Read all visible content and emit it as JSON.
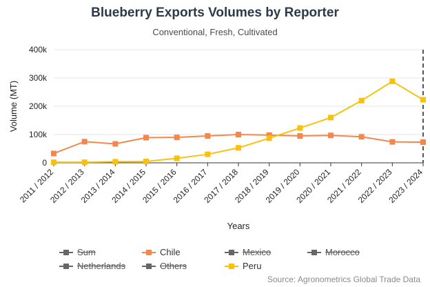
{
  "chart_data": {
    "type": "line",
    "title": "Blueberry Exports Volumes by Reporter",
    "subtitle": "Conventional, Fresh, Cultivated",
    "xlabel": "Years",
    "ylabel": "Volume (MT)",
    "ylim": [
      0,
      400000
    ],
    "y_ticks": [
      "0",
      "100k",
      "200k",
      "300k",
      "400k"
    ],
    "categories": [
      "2011 / 2012",
      "2012 / 2013",
      "2013 / 2014",
      "2014 / 2015",
      "2015 / 2016",
      "2016 / 2017",
      "2017 / 2018",
      "2018 / 2019",
      "2019 / 2020",
      "2020 / 2021",
      "2021 / 2022",
      "2022 / 2023",
      "2023 / 2024"
    ],
    "series": [
      {
        "name": "Chile",
        "color": "#f4874b",
        "values": [
          33000,
          75000,
          67000,
          89000,
          90000,
          95000,
          100000,
          98000,
          95000,
          97000,
          92000,
          74000,
          73000
        ]
      },
      {
        "name": "Peru",
        "color": "#f9c10e",
        "values": [
          2000,
          2000,
          4000,
          5000,
          16000,
          30000,
          53000,
          87000,
          123000,
          160000,
          220000,
          288000,
          223000
        ]
      }
    ],
    "legend": [
      {
        "name": "Sum",
        "visible": false,
        "color": "#666666"
      },
      {
        "name": "Chile",
        "visible": true,
        "color": "#f4874b"
      },
      {
        "name": "Mexico",
        "visible": false,
        "color": "#666666"
      },
      {
        "name": "Morocco",
        "visible": false,
        "color": "#666666"
      },
      {
        "name": "Netherlands",
        "visible": false,
        "color": "#666666"
      },
      {
        "name": "Others",
        "visible": false,
        "color": "#666666"
      },
      {
        "name": "Peru",
        "visible": true,
        "color": "#f9c10e"
      }
    ],
    "legend_position": "bottom",
    "grid": "horizontal",
    "highlight_category": "2023 / 2024"
  },
  "source": "Source: Agronometrics Global Trade Data"
}
